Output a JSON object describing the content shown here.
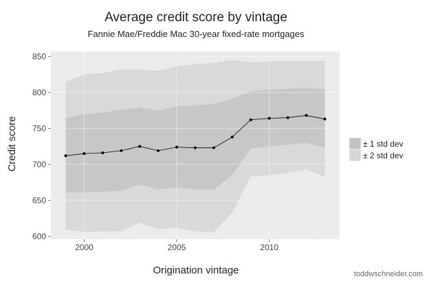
{
  "chart_data": {
    "type": "line",
    "title": "Average credit score by vintage",
    "subtitle": "Fannie Mae/Freddie Mac 30-year fixed-rate mortgages",
    "xlabel": "Origination vintage",
    "ylabel": "Credit score",
    "xlim": [
      1998.2,
      2013.8
    ],
    "ylim": [
      596,
      857
    ],
    "x_ticks": [
      2000,
      2005,
      2010
    ],
    "x_tick_labels": [
      "2000",
      "2005",
      "2010"
    ],
    "y_ticks": [
      600,
      650,
      700,
      750,
      800,
      850
    ],
    "y_tick_labels": [
      "600",
      "650",
      "700",
      "750",
      "800",
      "850"
    ],
    "x": [
      1999,
      2000,
      2001,
      2002,
      2003,
      2004,
      2005,
      2006,
      2007,
      2008,
      2009,
      2010,
      2011,
      2012,
      2013
    ],
    "series": [
      {
        "values": [
          712,
          715,
          716,
          719,
          725,
          719,
          724,
          723,
          723,
          738,
          762,
          764,
          765,
          768,
          763
        ]
      }
    ],
    "band_1sd": {
      "lower": [
        661,
        661,
        662,
        663,
        672,
        665,
        668,
        665,
        665,
        685,
        722,
        725,
        727,
        730,
        723
      ],
      "upper": [
        764,
        770,
        772,
        776,
        779,
        775,
        781,
        782,
        784,
        791,
        802,
        804,
        805,
        807,
        804
      ]
    },
    "band_2sd": {
      "lower": [
        609,
        606,
        607,
        607,
        619,
        610,
        612,
        607,
        606,
        633,
        683,
        685,
        688,
        693,
        683
      ]
    },
    "band_2sd_upper": [
      815,
      825,
      827,
      832,
      832,
      830,
      836,
      839,
      841,
      845,
      842,
      843,
      844,
      844,
      844
    ],
    "legend": {
      "position": "right",
      "items": [
        {
          "label": "± 1 std dev",
          "color": "#c2c2c2"
        },
        {
          "label": "± 2 std dev",
          "color": "#d6d6d6"
        }
      ]
    },
    "grid": true,
    "panel_color": "#ebebeb",
    "band1_color": "#c7c7c7",
    "band2_color": "#d9d9d9",
    "line_color": "#000000"
  },
  "credit": "toddwschneider.com"
}
